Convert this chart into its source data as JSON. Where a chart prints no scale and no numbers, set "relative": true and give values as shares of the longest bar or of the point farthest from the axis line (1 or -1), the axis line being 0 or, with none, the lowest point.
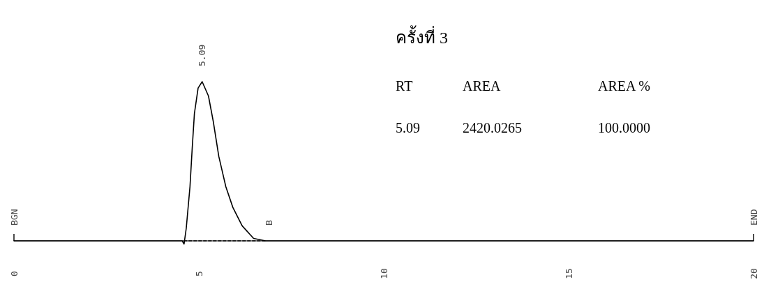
{
  "chart_data": {
    "type": "line",
    "relative": true,
    "title": "ครั้งที่ 3",
    "xlim": [
      0,
      20
    ],
    "xticks": [
      0,
      5,
      10,
      15,
      20
    ],
    "line_style": "solid",
    "series": [
      {
        "color": "#000000",
        "x": [
          0,
          4.55,
          4.6,
          4.66,
          4.76,
          4.82,
          4.88,
          4.98,
          5.09,
          5.26,
          5.39,
          5.54,
          5.73,
          5.92,
          6.17,
          6.48,
          6.8,
          20
        ],
        "values": [
          0,
          0,
          -0.02,
          0.08,
          0.34,
          0.58,
          0.8,
          0.96,
          1,
          0.91,
          0.75,
          0.53,
          0.34,
          0.21,
          0.095,
          0.015,
          0,
          0
        ]
      },
      {
        "color": "#000000",
        "line_style": "dashed",
        "x": [
          4.6,
          6.8
        ],
        "values": [
          0,
          0
        ]
      }
    ],
    "annotations": [
      {
        "text": "5.09",
        "x": 5.09,
        "y": 1
      },
      {
        "text": "BGN",
        "x": 0,
        "y": 0
      },
      {
        "text": "END",
        "x": 20,
        "y": 0
      },
      {
        "text": "B",
        "x": 6.9,
        "y": 0
      },
      "RT",
      "AREA",
      "AREA %",
      "5.09",
      "2420.0265",
      "100.0000"
    ]
  }
}
